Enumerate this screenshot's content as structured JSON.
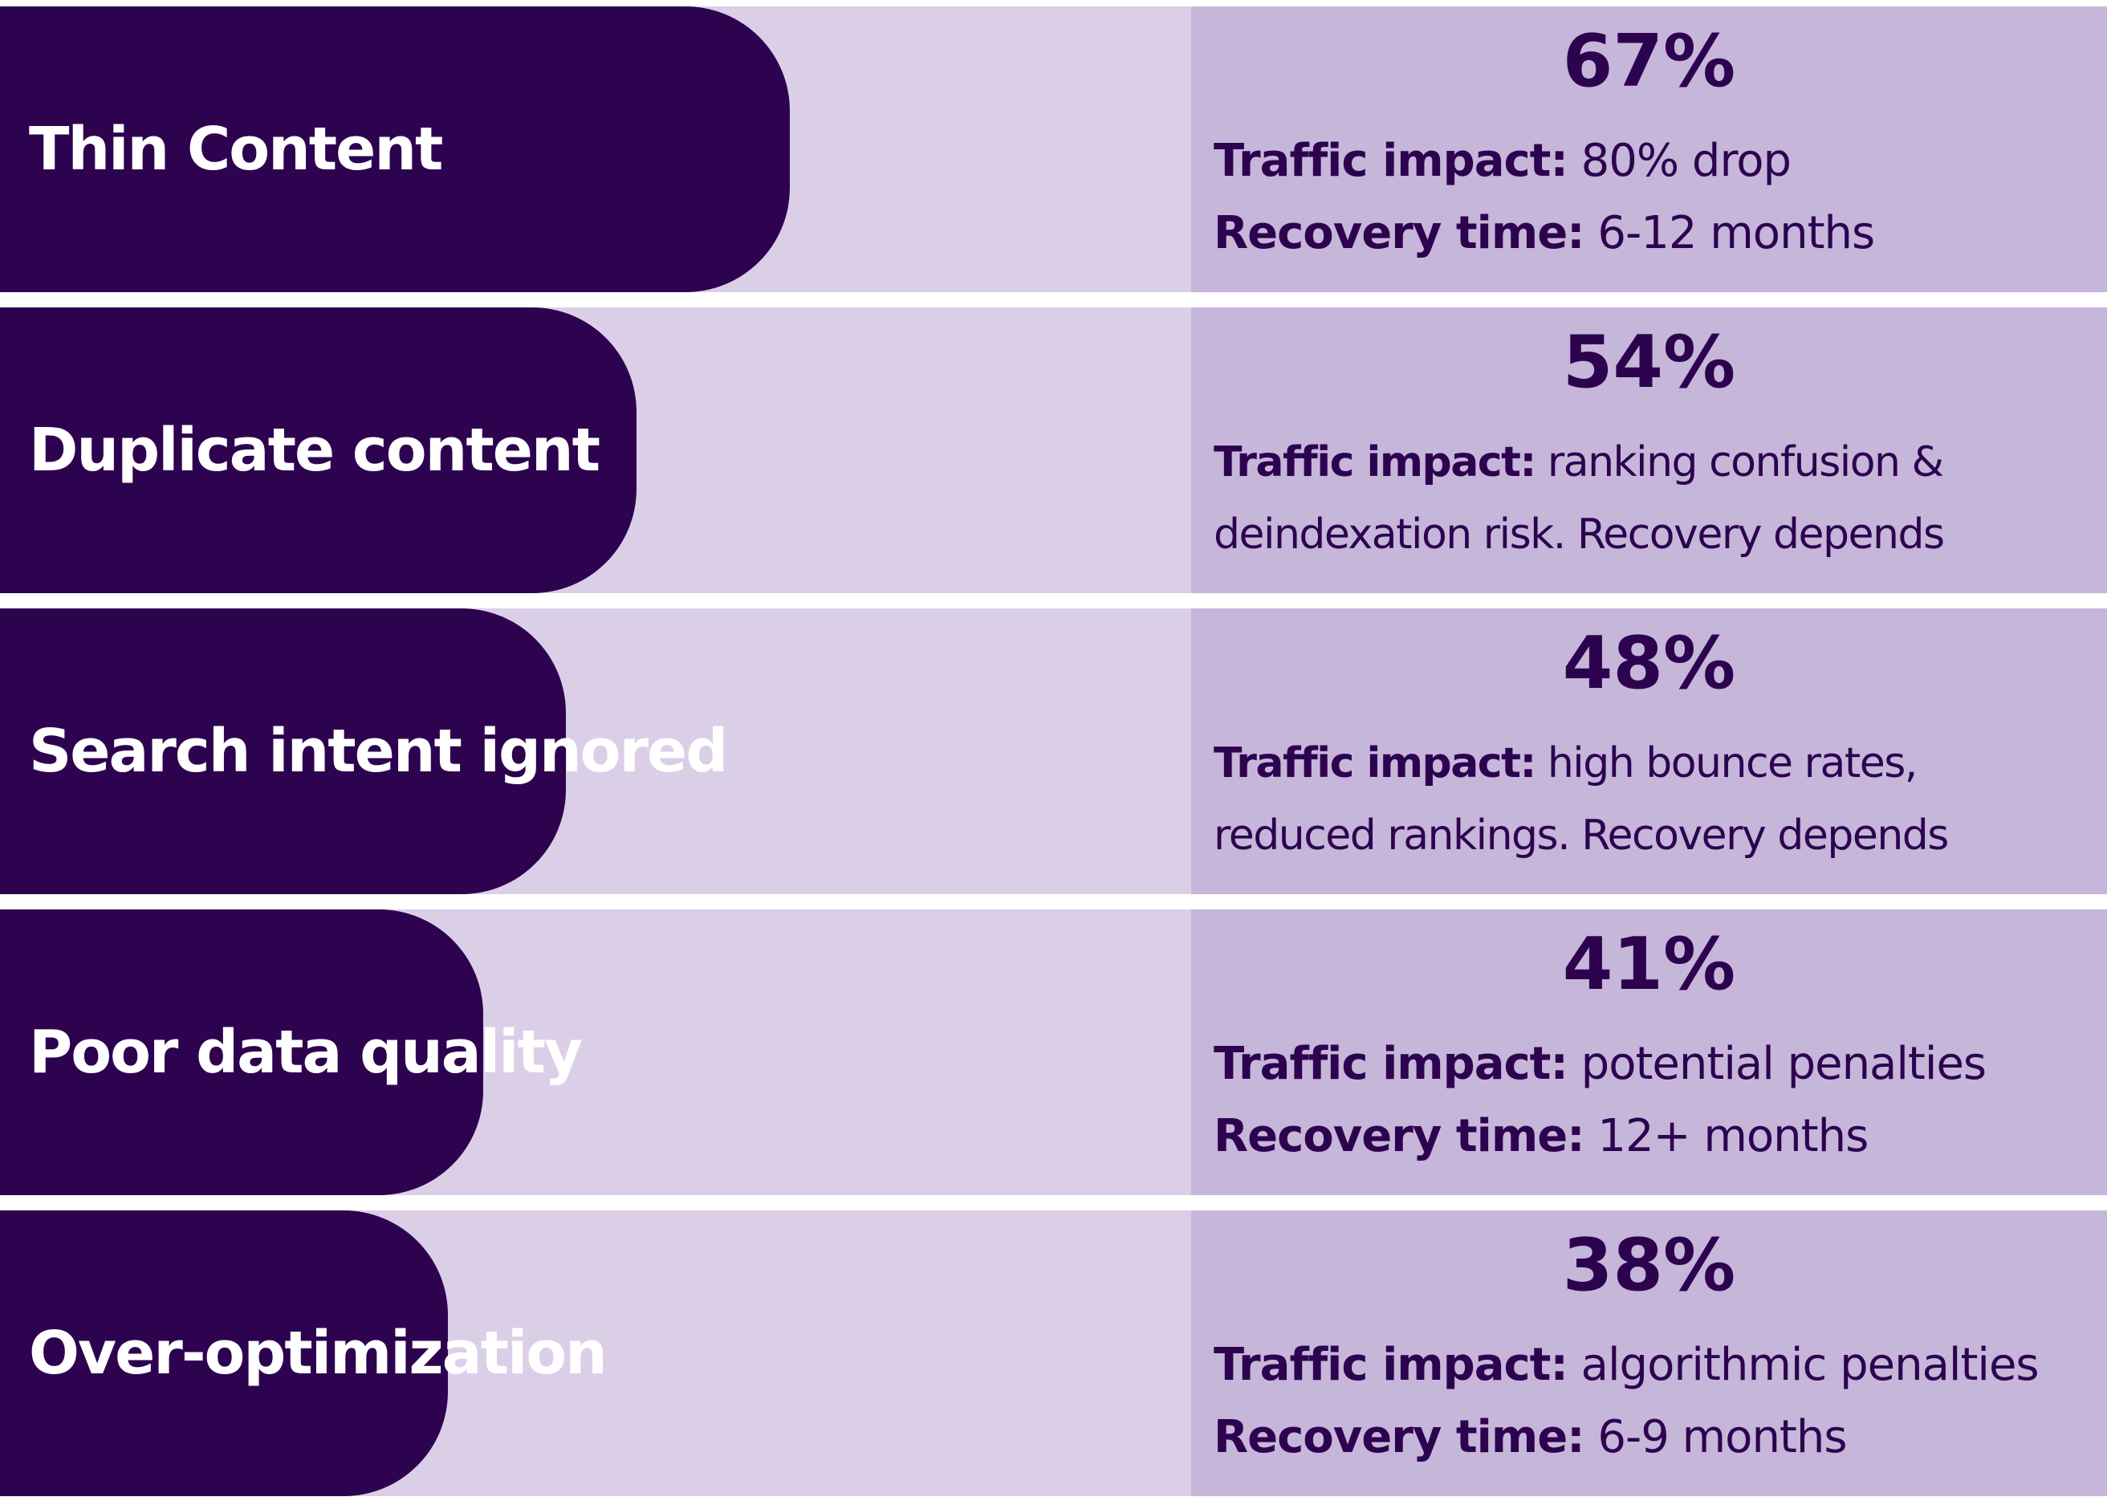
{
  "colors": {
    "bar": "#2d0350",
    "track": "#dbcfe8",
    "panel": "#c6b6da",
    "bar_text": "#ffffff",
    "panel_text": "#2d0350"
  },
  "chart_data": {
    "type": "bar",
    "orientation": "horizontal",
    "unit": "%",
    "xlim": [
      0,
      100
    ],
    "categories": [
      "Thin Content",
      "Duplicate content",
      "Search intent ignored",
      "Poor data quality",
      "Over-optimization"
    ],
    "values": [
      67,
      54,
      48,
      41,
      38
    ],
    "value_labels": [
      "67%",
      "54%",
      "48%",
      "41%",
      "38%"
    ],
    "annotations": [
      {
        "line1_key": "Traffic impact:",
        "line1_text": " 80% drop",
        "line2_key": "Recovery time:",
        "line2_text": " 6-12 months"
      },
      {
        "line1_key": "Traffic impact:",
        "line1_text": " ranking confusion &",
        "line2_key": "",
        "line2_text": "deindexation risk. Recovery depends"
      },
      {
        "line1_key": "Traffic impact:",
        "line1_text": " high bounce rates,",
        "line2_key": "",
        "line2_text": "reduced rankings. Recovery depends"
      },
      {
        "line1_key": "Traffic impact:",
        "line1_text": " potential penalties",
        "line2_key": "Recovery time:",
        "line2_text": " 12+ months"
      },
      {
        "line1_key": "Traffic impact:",
        "line1_text": " algorithmic penalties",
        "line2_key": "Recovery time:",
        "line2_text": " 6-9 months"
      }
    ]
  }
}
